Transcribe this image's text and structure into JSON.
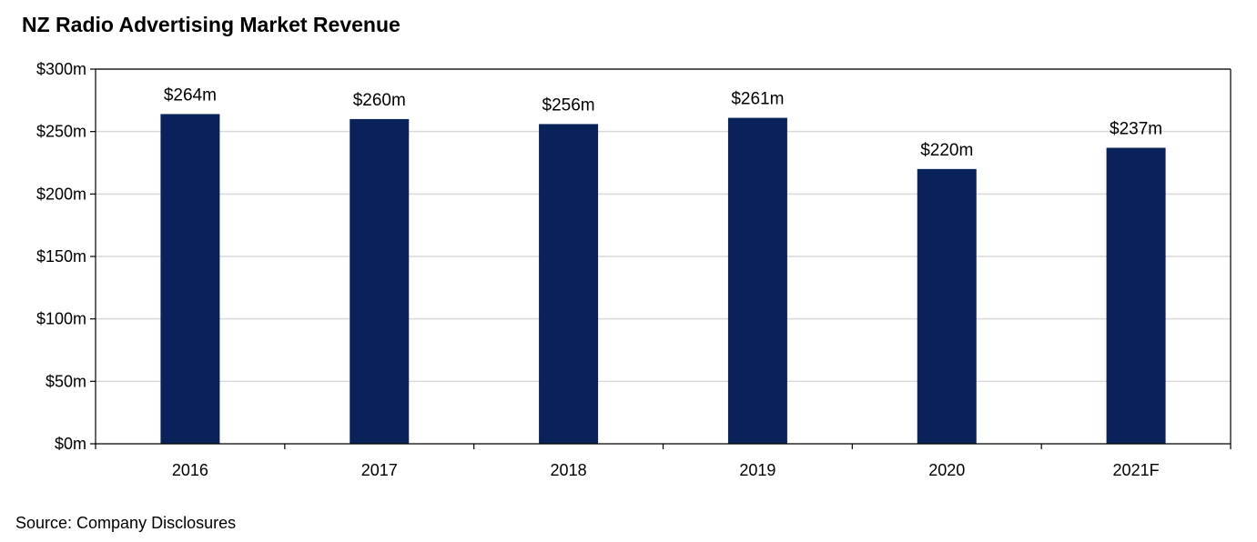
{
  "chart_data": {
    "type": "bar",
    "title": "NZ Radio Advertising Market Revenue",
    "source": "Source: Company Disclosures",
    "categories": [
      "2016",
      "2017",
      "2018",
      "2019",
      "2020",
      "2021F"
    ],
    "values": [
      264,
      260,
      256,
      261,
      220,
      237
    ],
    "data_labels": [
      "$264m",
      "$260m",
      "$256m",
      "$261m",
      "$220m",
      "$237m"
    ],
    "y_ticks": [
      0,
      50,
      100,
      150,
      200,
      250,
      300
    ],
    "y_tick_labels": [
      "$0m",
      "$50m",
      "$100m",
      "$150m",
      "$200m",
      "$250m",
      "$300m"
    ],
    "ylim": [
      0,
      300
    ],
    "grid": true,
    "legend": "none",
    "colors": {
      "bar": "#0a225a",
      "grid": "#d9d9d9",
      "axis": "#000000"
    }
  }
}
